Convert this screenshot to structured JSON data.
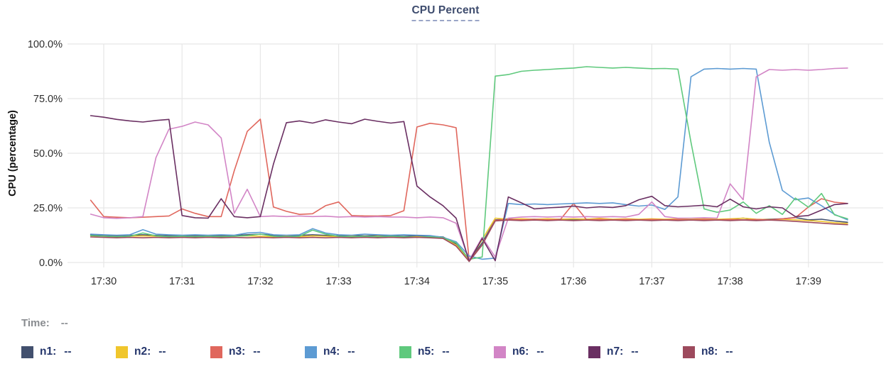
{
  "title": "CPU Percent",
  "y_axis_title": "CPU (percentage)",
  "legend": {
    "time_label": "Time:",
    "time_value": "--",
    "items": [
      {
        "label": "n1:",
        "value": "--"
      },
      {
        "label": "n2:",
        "value": "--"
      },
      {
        "label": "n3:",
        "value": "--"
      },
      {
        "label": "n4:",
        "value": "--"
      },
      {
        "label": "n5:",
        "value": "--"
      },
      {
        "label": "n6:",
        "value": "--"
      },
      {
        "label": "n7:",
        "value": "--"
      },
      {
        "label": "n8:",
        "value": "--"
      }
    ]
  },
  "colors": {
    "title_text": "#3e4c6e",
    "legend_text": "#24356b",
    "time_text": "#898c90",
    "tick_text": "#2d2d2d",
    "grid": "#e7e7e7"
  },
  "chart_data": {
    "type": "line",
    "title": "CPU Percent",
    "xlabel": "",
    "ylabel": "CPU (percentage)",
    "ylim": [
      0,
      100
    ],
    "grid": true,
    "legend_position": "bottom",
    "y_tick_labels": [
      "0.0%",
      "25.0%",
      "50.0%",
      "75.0%",
      "100.0%"
    ],
    "y_tick_values": [
      0,
      25,
      50,
      75,
      100
    ],
    "x_tick_labels": [
      "17:30",
      "17:31",
      "17:32",
      "17:33",
      "17:34",
      "17:35",
      "17:36",
      "17:37",
      "17:38",
      "17:39"
    ],
    "x": [
      "17:29:50",
      "17:30:00",
      "17:30:10",
      "17:30:20",
      "17:30:30",
      "17:30:40",
      "17:30:50",
      "17:31:00",
      "17:31:10",
      "17:31:20",
      "17:31:30",
      "17:31:40",
      "17:31:50",
      "17:32:00",
      "17:32:10",
      "17:32:20",
      "17:32:30",
      "17:32:40",
      "17:32:50",
      "17:33:00",
      "17:33:10",
      "17:33:20",
      "17:33:30",
      "17:33:40",
      "17:33:50",
      "17:34:00",
      "17:34:10",
      "17:34:20",
      "17:34:30",
      "17:34:40",
      "17:34:50",
      "17:35:00",
      "17:35:10",
      "17:35:20",
      "17:35:30",
      "17:35:40",
      "17:35:50",
      "17:36:00",
      "17:36:10",
      "17:36:20",
      "17:36:30",
      "17:36:40",
      "17:36:50",
      "17:37:00",
      "17:37:10",
      "17:37:20",
      "17:37:30",
      "17:37:40",
      "17:37:50",
      "17:38:00",
      "17:38:10",
      "17:38:20",
      "17:38:30",
      "17:38:40",
      "17:38:50",
      "17:39:00",
      "17:39:10",
      "17:39:20",
      "17:39:30"
    ],
    "series": [
      {
        "name": "n1",
        "color": "#42506e",
        "values": [
          12.7,
          12.4,
          12.2,
          12.4,
          12.7,
          12.4,
          12.2,
          12.4,
          12.2,
          12.4,
          12.2,
          12.4,
          12.7,
          13.0,
          12.4,
          12.2,
          12.4,
          12.7,
          12.4,
          12.2,
          12.4,
          12.2,
          12.4,
          12.2,
          12.0,
          12.2,
          12.0,
          11.7,
          8.5,
          1.0,
          9.0,
          19.5,
          20.0,
          19.7,
          19.8,
          19.6,
          19.8,
          19.6,
          19.8,
          20.0,
          19.7,
          19.8,
          19.6,
          19.8,
          19.6,
          19.8,
          19.6,
          19.8,
          19.6,
          19.8,
          20.3,
          19.6,
          19.8,
          20.0,
          20.6,
          19.5,
          19.8,
          19.0,
          18.4
        ]
      },
      {
        "name": "n2",
        "color": "#f0c62c",
        "values": [
          12.2,
          12.0,
          11.8,
          12.0,
          12.2,
          12.0,
          11.8,
          12.0,
          11.8,
          12.0,
          11.8,
          12.0,
          12.2,
          12.0,
          11.8,
          12.0,
          11.8,
          12.2,
          12.0,
          11.8,
          12.0,
          11.8,
          12.0,
          11.8,
          11.6,
          11.8,
          11.6,
          11.2,
          8.0,
          0.8,
          10.5,
          20.3,
          19.8,
          20.0,
          19.8,
          20.0,
          19.8,
          20.0,
          19.8,
          20.2,
          19.8,
          20.0,
          19.8,
          20.0,
          19.8,
          20.0,
          19.8,
          20.0,
          19.8,
          20.0,
          20.3,
          19.8,
          19.6,
          19.8,
          19.5,
          19.2,
          18.8,
          18.2,
          17.9
        ]
      },
      {
        "name": "n3",
        "color": "#e0675d",
        "values": [
          28.5,
          21.0,
          20.7,
          20.5,
          20.7,
          21.0,
          21.3,
          24.5,
          22.5,
          21.0,
          21.0,
          42.0,
          60.0,
          65.6,
          25.4,
          23.4,
          22.0,
          22.3,
          26.0,
          27.7,
          21.5,
          21.3,
          21.3,
          21.5,
          23.7,
          62.0,
          63.7,
          63.0,
          61.7,
          1.0,
          8.0,
          19.3,
          19.8,
          19.5,
          19.7,
          19.5,
          19.7,
          27.0,
          19.5,
          19.7,
          19.5,
          19.7,
          19.5,
          19.7,
          19.5,
          19.7,
          19.5,
          19.7,
          19.5,
          19.7,
          19.5,
          19.7,
          19.5,
          20.0,
          20.5,
          25.4,
          29.2,
          27.6,
          27.0
        ]
      },
      {
        "name": "n4",
        "color": "#5d9bd3",
        "values": [
          13.0,
          12.7,
          12.5,
          12.7,
          15.0,
          13.0,
          12.7,
          12.5,
          12.7,
          12.5,
          12.7,
          12.5,
          13.5,
          13.8,
          12.7,
          12.5,
          12.7,
          15.5,
          13.5,
          12.7,
          12.5,
          13.0,
          12.7,
          12.5,
          12.7,
          12.5,
          12.3,
          11.5,
          9.5,
          3.0,
          1.5,
          2.0,
          27.0,
          26.5,
          26.8,
          26.5,
          26.8,
          27.0,
          27.3,
          27.0,
          27.3,
          26.5,
          25.8,
          26.3,
          24.3,
          30.0,
          85.0,
          88.5,
          88.8,
          88.5,
          88.8,
          88.5,
          55.0,
          33.0,
          28.7,
          29.5,
          26.0,
          22.0,
          19.5
        ]
      },
      {
        "name": "n5",
        "color": "#5fc97d",
        "values": [
          12.3,
          12.0,
          11.8,
          12.0,
          13.5,
          12.2,
          11.8,
          12.0,
          11.8,
          12.0,
          11.8,
          12.0,
          12.3,
          13.0,
          12.0,
          11.8,
          12.0,
          14.8,
          13.0,
          12.0,
          11.8,
          12.0,
          11.8,
          12.0,
          11.8,
          11.5,
          11.8,
          11.3,
          9.0,
          1.5,
          2.5,
          85.3,
          86.0,
          87.5,
          88.0,
          88.3,
          88.7,
          89.0,
          89.6,
          89.3,
          89.0,
          89.3,
          89.0,
          88.7,
          88.8,
          88.5,
          55.0,
          24.5,
          23.0,
          24.0,
          27.7,
          22.5,
          26.0,
          22.0,
          29.5,
          25.3,
          31.6,
          21.8,
          20.0
        ]
      },
      {
        "name": "n6",
        "color": "#d285c6",
        "values": [
          22.1,
          20.5,
          20.2,
          20.5,
          21.0,
          48.0,
          61.0,
          62.3,
          64.3,
          63.0,
          57.0,
          22.5,
          33.5,
          21.0,
          21.3,
          21.0,
          21.3,
          21.0,
          21.2,
          20.8,
          21.0,
          20.8,
          21.0,
          20.8,
          20.8,
          20.5,
          20.8,
          20.5,
          18.0,
          1.0,
          11.5,
          2.5,
          20.3,
          20.8,
          21.0,
          20.8,
          21.0,
          20.8,
          21.0,
          20.8,
          21.0,
          20.8,
          22.0,
          27.7,
          21.0,
          20.3,
          20.3,
          20.5,
          20.3,
          36.0,
          28.7,
          85.0,
          88.3,
          88.0,
          88.3,
          88.0,
          88.3,
          88.8,
          89.0
        ]
      },
      {
        "name": "n7",
        "color": "#6a2f62",
        "values": [
          67.2,
          66.5,
          65.5,
          64.8,
          64.3,
          65.0,
          65.5,
          21.5,
          20.5,
          20.3,
          29.2,
          21.0,
          20.5,
          21.0,
          45.0,
          64.0,
          64.8,
          63.8,
          65.3,
          64.3,
          63.5,
          65.6,
          64.6,
          63.8,
          64.5,
          35.0,
          30.0,
          26.0,
          20.3,
          0.5,
          11.0,
          0.8,
          30.0,
          27.3,
          24.5,
          25.0,
          25.3,
          25.8,
          25.0,
          25.5,
          25.2,
          26.0,
          28.7,
          30.3,
          26.0,
          25.5,
          25.8,
          26.2,
          25.5,
          29.0,
          25.5,
          24.5,
          25.5,
          25.0,
          21.0,
          21.5,
          24.0,
          26.5,
          27.0
        ]
      },
      {
        "name": "n8",
        "color": "#9d4a5d",
        "values": [
          11.7,
          11.5,
          11.3,
          11.5,
          11.3,
          11.5,
          11.3,
          11.5,
          11.3,
          11.5,
          11.3,
          11.5,
          11.3,
          11.5,
          11.3,
          11.5,
          11.3,
          11.5,
          11.3,
          11.5,
          11.3,
          11.5,
          11.3,
          11.5,
          11.3,
          11.5,
          11.3,
          11.0,
          7.5,
          0.5,
          8.0,
          19.0,
          19.4,
          19.2,
          19.4,
          19.2,
          19.4,
          19.2,
          19.4,
          19.2,
          19.4,
          19.2,
          19.4,
          19.2,
          19.4,
          19.2,
          19.4,
          19.2,
          19.4,
          19.2,
          19.4,
          19.2,
          19.4,
          19.2,
          18.8,
          18.4,
          18.0,
          17.6,
          17.3
        ]
      }
    ]
  }
}
